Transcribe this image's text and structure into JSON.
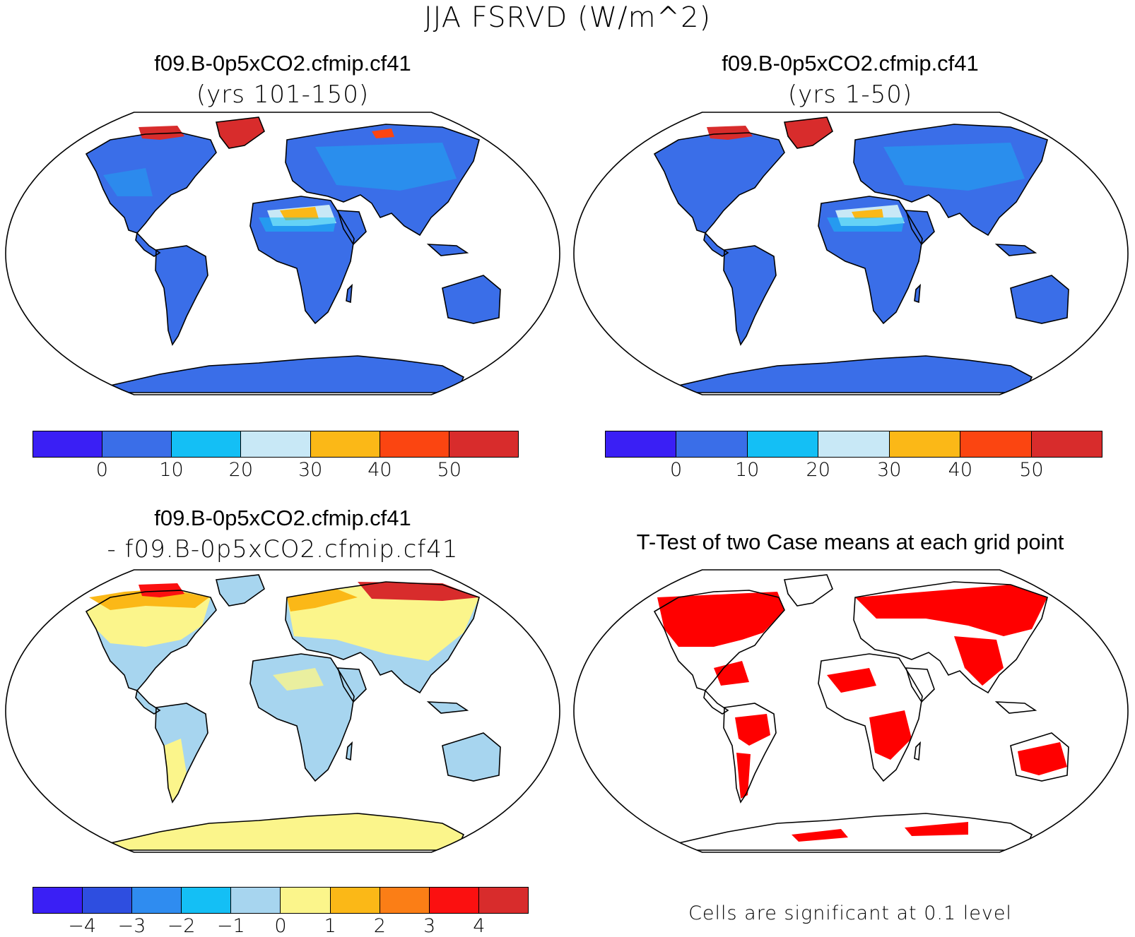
{
  "figure": {
    "title": "JJA FSRVD (W/m^2)"
  },
  "panels": [
    {
      "id": "top-left",
      "title": "f09.B-0p5xCO2.cfmip.cf41",
      "subtitle": "(yrs 101-150)",
      "field": "absolute",
      "land_color": "#3a6ee8",
      "colorbar": {
        "colors": [
          "#3a1ff5",
          "#3a6ee8",
          "#14bff5",
          "#c8e8f6",
          "#fbb817",
          "#fb4511",
          "#d82c2c"
        ],
        "labels": [
          "0",
          "10",
          "20",
          "30",
          "40",
          "50"
        ]
      }
    },
    {
      "id": "top-right",
      "title": "f09.B-0p5xCO2.cfmip.cf41",
      "subtitle": "(yrs 1-50)",
      "field": "absolute",
      "land_color": "#3a6ee8",
      "colorbar": {
        "colors": [
          "#3a1ff5",
          "#3a6ee8",
          "#14bff5",
          "#c8e8f6",
          "#fbb817",
          "#fb4511",
          "#d82c2c"
        ],
        "labels": [
          "0",
          "10",
          "20",
          "30",
          "40",
          "50"
        ]
      }
    },
    {
      "id": "bottom-left",
      "title": "f09.B-0p5xCO2.cfmip.cf41",
      "subtitle": "- f09.B-0p5xCO2.cfmip.cf41",
      "field": "difference",
      "land_color": "#a7d5ef",
      "colorbar": {
        "colors": [
          "#3a1ff5",
          "#2e4ee0",
          "#2f8cf0",
          "#14bff5",
          "#a7d5ef",
          "#fbf58b",
          "#fbb817",
          "#fb7e16",
          "#fb1010",
          "#d82c2c"
        ],
        "labels": [
          "-4",
          "-3",
          "-2",
          "-1",
          "0",
          "1",
          "2",
          "3",
          "4"
        ]
      }
    },
    {
      "id": "bottom-right",
      "title": "T-Test of two Case means at each grid point",
      "field": "significance",
      "land_color": "#ff0000",
      "note": "Cells are significant at 0.1 level"
    }
  ]
}
